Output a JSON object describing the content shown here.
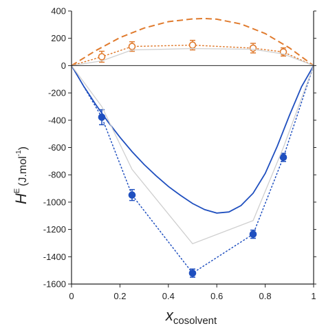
{
  "chart_data": {
    "type": "line",
    "title": "",
    "xlabel": "x",
    "xlabel_subscript": "cosolvent",
    "ylabel": "H",
    "ylabel_superscript": "E",
    "ylabel_unit_prefix": "(J.mol",
    "ylabel_unit_exp": "-1",
    "ylabel_unit_suffix": ")",
    "xlim": [
      0,
      1
    ],
    "ylim": [
      -1600,
      400
    ],
    "xticks": [
      0,
      0.2,
      0.4,
      0.6,
      0.8,
      1
    ],
    "xtick_labels": [
      "0",
      "0.2",
      "0.4",
      "0.6",
      "0.8",
      "1"
    ],
    "yticks": [
      -1600,
      -1400,
      -1200,
      -1000,
      -800,
      -600,
      -400,
      -200,
      0,
      200,
      400
    ],
    "ytick_labels": [
      "-1600",
      "-1400",
      "-1200",
      "-1000",
      "-800",
      "-600",
      "-400",
      "-200",
      "0",
      "200",
      "400"
    ],
    "grid": false,
    "colors": {
      "orange": "#e07b2e",
      "blue": "#1f4fbf",
      "gray": "#cfcfcf",
      "axis": "#222222"
    },
    "series": [
      {
        "style": "orange-open-markers-dotted",
        "x": [
          0,
          0.125,
          0.25,
          0.5,
          0.75,
          0.875,
          1
        ],
        "y": [
          0,
          65,
          140,
          150,
          128,
          100,
          0
        ],
        "err": [
          0,
          40,
          35,
          35,
          35,
          30,
          0
        ]
      },
      {
        "style": "blue-filled-markers-dotted",
        "x": [
          0,
          0.125,
          0.25,
          0.5,
          0.75,
          0.875,
          1
        ],
        "y": [
          0,
          -378,
          -948,
          -1520,
          -1235,
          -672,
          0
        ],
        "err": [
          0,
          55,
          40,
          30,
          30,
          30,
          0
        ]
      },
      {
        "style": "orange-dashed-curve",
        "x": [
          0,
          0.1,
          0.2,
          0.3,
          0.4,
          0.5,
          0.55,
          0.6,
          0.7,
          0.8,
          0.9,
          1
        ],
        "y": [
          0,
          110,
          205,
          275,
          322,
          342,
          345,
          340,
          305,
          235,
          130,
          0
        ]
      },
      {
        "style": "blue-solid-curve",
        "x": [
          0,
          0.05,
          0.1,
          0.15,
          0.2,
          0.25,
          0.3,
          0.35,
          0.4,
          0.45,
          0.5,
          0.55,
          0.6,
          0.65,
          0.7,
          0.75,
          0.8,
          0.85,
          0.9,
          0.95,
          1
        ],
        "y": [
          0,
          -150,
          -285,
          -410,
          -525,
          -630,
          -725,
          -808,
          -885,
          -950,
          -1010,
          -1055,
          -1080,
          -1072,
          -1025,
          -935,
          -790,
          -590,
          -365,
          -155,
          0
        ]
      },
      {
        "style": "gray-thin-line",
        "x": [
          0,
          0.125,
          0.25,
          0.5,
          0.75,
          0.875,
          1
        ],
        "y": [
          0,
          -300,
          -760,
          -1305,
          -1135,
          -600,
          0
        ]
      },
      {
        "style": "gray-thin-line",
        "x": [
          0,
          0.125,
          0.25,
          0.5,
          0.75,
          0.875,
          1
        ],
        "y": [
          0,
          35,
          115,
          125,
          120,
          85,
          0
        ]
      }
    ]
  }
}
